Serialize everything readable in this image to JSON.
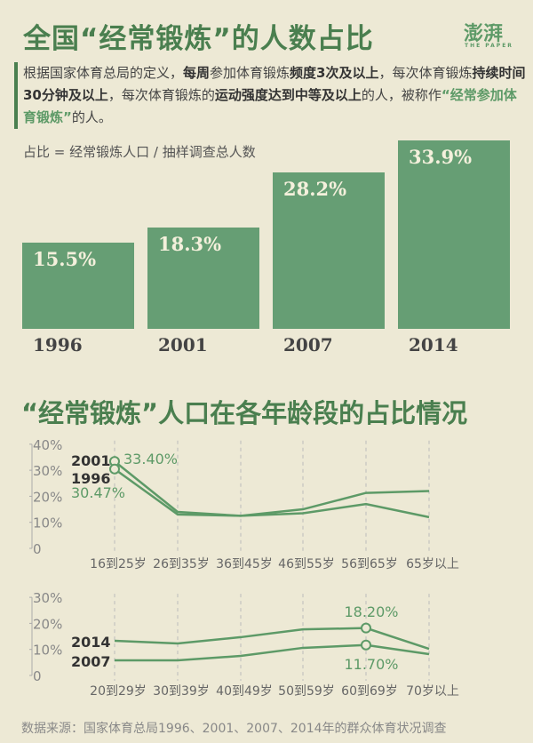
{
  "header": {
    "title": "全国“经常锻炼”的人数占比",
    "logo": "澎湃",
    "logo_sub": "THE PAPER"
  },
  "intro": {
    "parts": [
      "根据国家体育总局的定义，",
      "每周",
      "参加体育锻炼",
      "频度3次及以上",
      "，每次体育锻炼",
      "持续时间30分钟及以上",
      "，每次体育锻炼的",
      "运动强度达到中等及以上",
      "的人，被称作",
      "“经常参加体育锻炼”",
      "的人。"
    ]
  },
  "formula": "占比 = 经常锻炼人口 / 抽样调查总人数",
  "section2_title": "“经常锻炼”人口在各年龄段的占比情况",
  "source": "数据来源：国家体育总局1996、2001、2007、2014年的群众体育状况调查",
  "chart_data": [
    {
      "type": "bar",
      "title": "全国“经常锻炼”的人数占比",
      "categories": [
        "1996",
        "2001",
        "2007",
        "2014"
      ],
      "values": [
        15.5,
        18.3,
        28.2,
        33.9
      ],
      "labels": [
        "15.5%",
        "18.3%",
        "28.2%",
        "33.9%"
      ],
      "ylabel": "占比"
    },
    {
      "type": "line",
      "title": "“经常锻炼”人口在各年龄段的占比情况 (1996, 2001)",
      "categories": [
        "16到25岁",
        "26到35岁",
        "36到45岁",
        "46到55岁",
        "56到65岁",
        "65岁以上"
      ],
      "yticks": [
        "0",
        "10%",
        "20%",
        "30%",
        "40%"
      ],
      "ylim": [
        0,
        40
      ],
      "series": [
        {
          "name": "2001",
          "values": [
            33.4,
            14.0,
            12.5,
            15.0,
            21.3,
            22.0
          ]
        },
        {
          "name": "1996",
          "values": [
            30.47,
            13.0,
            12.5,
            13.5,
            17.0,
            12.0
          ]
        }
      ],
      "annotations": [
        "33.40%",
        "30.47%"
      ]
    },
    {
      "type": "line",
      "title": "“经常锻炼”人口在各年龄段的占比情况 (2007, 2014)",
      "categories": [
        "20到29岁",
        "30到39岁",
        "40到49岁",
        "50到59岁",
        "60到69岁",
        "70岁以上"
      ],
      "yticks": [
        "0",
        "10%",
        "20%",
        "30%"
      ],
      "ylim": [
        0,
        30
      ],
      "series": [
        {
          "name": "2014",
          "values": [
            13.3,
            12.3,
            14.7,
            17.7,
            18.2,
            10.2
          ]
        },
        {
          "name": "2007",
          "values": [
            5.8,
            5.8,
            7.5,
            10.6,
            11.7,
            8.2
          ]
        }
      ],
      "annotations": [
        "18.20%",
        "11.70%"
      ]
    }
  ]
}
